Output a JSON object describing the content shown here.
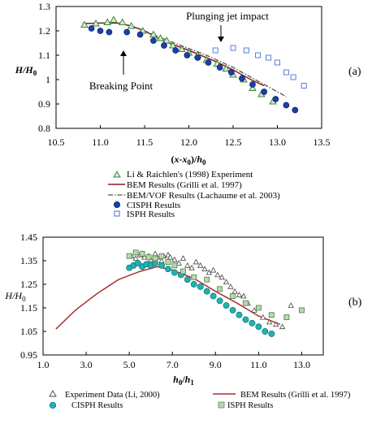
{
  "chart_data": [
    {
      "id": "a",
      "type": "scatter",
      "panel_label": "(a)",
      "xlabel": "(x-x0)/h0",
      "xlabel_parts": [
        "(",
        "x",
        "-",
        "x",
        "0",
        ")/",
        "h",
        "0"
      ],
      "ylabel_parts": [
        "H",
        "/",
        "H",
        "0"
      ],
      "xlim": [
        10.5,
        13.5
      ],
      "ylim": [
        0.8,
        1.3
      ],
      "xticks": [
        10.5,
        11.0,
        11.5,
        12.0,
        12.5,
        13.0,
        13.5
      ],
      "xtick_labels": [
        "10.5",
        "11.0",
        "11.5",
        "12.0",
        "12.5",
        "13.0",
        "13.5"
      ],
      "yticks": [
        0.8,
        0.9,
        1.0,
        1.1,
        1.2,
        1.3
      ],
      "ytick_labels": [
        "0.8",
        "0.9",
        "1",
        "1.1",
        "1.2",
        "1.3"
      ],
      "grid": false,
      "legend_position": "below",
      "annotations": [
        {
          "text": "Plunging jet impact",
          "x": 12.3,
          "y": 1.165
        },
        {
          "text": "Breaking Point",
          "x": 11.3,
          "y": 1.01
        }
      ],
      "series": [
        {
          "name": "Li & Raichlen's (1998) Experiment",
          "type": "scatter",
          "marker": "triangle",
          "color": "#3a8a3a",
          "x": [
            10.82,
            10.95,
            11.08,
            11.15,
            11.25,
            11.35,
            11.48,
            11.6,
            11.68,
            11.75,
            11.82,
            11.92,
            12.0,
            12.1,
            12.2,
            12.32,
            12.42,
            12.5,
            12.62,
            12.72,
            12.82,
            12.95
          ],
          "y": [
            1.225,
            1.23,
            1.235,
            1.245,
            1.235,
            1.22,
            1.2,
            1.185,
            1.17,
            1.16,
            1.14,
            1.125,
            1.11,
            1.1,
            1.08,
            1.065,
            1.045,
            1.02,
            1.0,
            0.965,
            0.94,
            0.91
          ]
        },
        {
          "name": "BEM Results (Grilli et al. 1997)",
          "type": "line",
          "style": "solid",
          "color": "#8b1a1a",
          "x": [
            10.8,
            11.0,
            11.2,
            11.35,
            11.5,
            11.7,
            12.0,
            12.3,
            12.5,
            12.7,
            12.85
          ],
          "y": [
            1.23,
            1.232,
            1.232,
            1.22,
            1.2,
            1.16,
            1.12,
            1.075,
            1.04,
            1.0,
            0.975
          ]
        },
        {
          "name": "BEM/VOF Results (Lachaume et al. 2003)",
          "type": "line",
          "style": "dashdot",
          "color": "#555555",
          "x": [
            11.5,
            11.8,
            12.2,
            12.5,
            12.8,
            13.1
          ],
          "y": [
            1.2,
            1.155,
            1.1,
            1.05,
            0.99,
            0.93
          ]
        },
        {
          "name": "CISPH Results",
          "type": "scatter",
          "marker": "circle",
          "color": "#1a3fae",
          "x": [
            10.9,
            11.0,
            11.1,
            11.3,
            11.45,
            11.6,
            11.72,
            11.85,
            11.98,
            12.1,
            12.22,
            12.35,
            12.48,
            12.6,
            12.72,
            12.85,
            12.98,
            13.1,
            13.2
          ],
          "y": [
            1.21,
            1.2,
            1.195,
            1.195,
            1.185,
            1.16,
            1.14,
            1.12,
            1.1,
            1.09,
            1.07,
            1.05,
            1.03,
            1.005,
            0.98,
            0.95,
            0.92,
            0.895,
            0.875
          ]
        },
        {
          "name": "ISPH Results",
          "type": "scatter",
          "marker": "square",
          "color": "#4a6fd8",
          "x": [
            12.3,
            12.5,
            12.65,
            12.78,
            12.9,
            13.0,
            13.1,
            13.18,
            13.3
          ],
          "y": [
            1.12,
            1.13,
            1.12,
            1.1,
            1.09,
            1.07,
            1.03,
            1.01,
            0.975
          ]
        }
      ]
    },
    {
      "id": "b",
      "type": "scatter",
      "panel_label": "(b)",
      "xlabel": "h0/h1",
      "xlabel_parts": [
        "h",
        "0",
        "/",
        "h",
        "1"
      ],
      "ylabel_parts": [
        "H",
        "/",
        "H",
        "0"
      ],
      "xlim": [
        1.0,
        14.0
      ],
      "ylim": [
        0.95,
        1.45
      ],
      "xticks": [
        1.0,
        3.0,
        5.0,
        7.0,
        9.0,
        11.0,
        13.0
      ],
      "xtick_labels": [
        "1.0",
        "3.0",
        "5.0",
        "7.0",
        "9.0",
        "11.0",
        "13.0"
      ],
      "yticks": [
        0.95,
        1.05,
        1.15,
        1.25,
        1.35,
        1.45
      ],
      "ytick_labels": [
        "0.95",
        "1.05",
        "1.15",
        "1.25",
        "1.35",
        "1.45"
      ],
      "grid": false,
      "legend_position": "below",
      "series": [
        {
          "name": "Experiment Data (Li, 2000)",
          "type": "scatter",
          "marker": "triangle-open",
          "color": "#444444",
          "x": [
            5.1,
            5.3,
            5.5,
            5.7,
            5.9,
            6.0,
            6.2,
            6.3,
            6.5,
            6.6,
            6.8,
            6.9,
            7.1,
            7.3,
            7.5,
            7.7,
            7.9,
            8.1,
            8.3,
            8.5,
            8.7,
            8.9,
            9.1,
            9.3,
            9.5,
            9.7,
            9.9,
            10.1,
            10.3,
            10.5,
            10.8,
            11.2,
            11.5,
            11.8,
            12.1,
            12.5
          ],
          "y": [
            1.37,
            1.36,
            1.375,
            1.365,
            1.37,
            1.355,
            1.38,
            1.365,
            1.35,
            1.37,
            1.375,
            1.365,
            1.355,
            1.34,
            1.36,
            1.33,
            1.32,
            1.345,
            1.33,
            1.315,
            1.3,
            1.31,
            1.29,
            1.28,
            1.26,
            1.24,
            1.22,
            1.205,
            1.2,
            1.17,
            1.14,
            1.11,
            1.09,
            1.08,
            1.07,
            1.16
          ]
        },
        {
          "name": "BEM Results (Grilli et al. 1997)",
          "type": "line",
          "style": "solid",
          "color": "#a83232",
          "x": [
            1.6,
            2.5,
            3.5,
            4.5,
            5.5,
            6.3,
            7.0,
            8.0,
            9.0,
            10.0,
            11.0,
            12.0
          ],
          "y": [
            1.06,
            1.14,
            1.21,
            1.27,
            1.305,
            1.325,
            1.31,
            1.275,
            1.22,
            1.17,
            1.115,
            1.08
          ]
        },
        {
          "name": "CISPH Results",
          "type": "scatter",
          "marker": "circle",
          "color": "#20b2b2",
          "x": [
            5.0,
            5.2,
            5.4,
            5.6,
            5.8,
            6.0,
            6.2,
            6.5,
            6.8,
            7.1,
            7.4,
            7.7,
            8.0,
            8.3,
            8.6,
            8.9,
            9.2,
            9.5,
            9.8,
            10.1,
            10.4,
            10.7,
            11.0,
            11.3,
            11.6
          ],
          "y": [
            1.32,
            1.33,
            1.34,
            1.325,
            1.335,
            1.33,
            1.34,
            1.33,
            1.315,
            1.3,
            1.29,
            1.27,
            1.25,
            1.24,
            1.22,
            1.2,
            1.18,
            1.16,
            1.14,
            1.12,
            1.1,
            1.085,
            1.07,
            1.05,
            1.04
          ]
        },
        {
          "name": "ISPH Results",
          "type": "scatter",
          "marker": "square",
          "color": "#7aaa70",
          "x": [
            5.0,
            5.3,
            5.6,
            5.9,
            6.2,
            6.5,
            6.8,
            7.1,
            7.5,
            8.0,
            8.6,
            9.2,
            9.8,
            10.4,
            11.0,
            11.6,
            12.3,
            13.0
          ],
          "y": [
            1.37,
            1.385,
            1.38,
            1.365,
            1.36,
            1.37,
            1.345,
            1.33,
            1.305,
            1.28,
            1.27,
            1.23,
            1.2,
            1.17,
            1.15,
            1.12,
            1.11,
            1.14
          ]
        }
      ]
    }
  ]
}
